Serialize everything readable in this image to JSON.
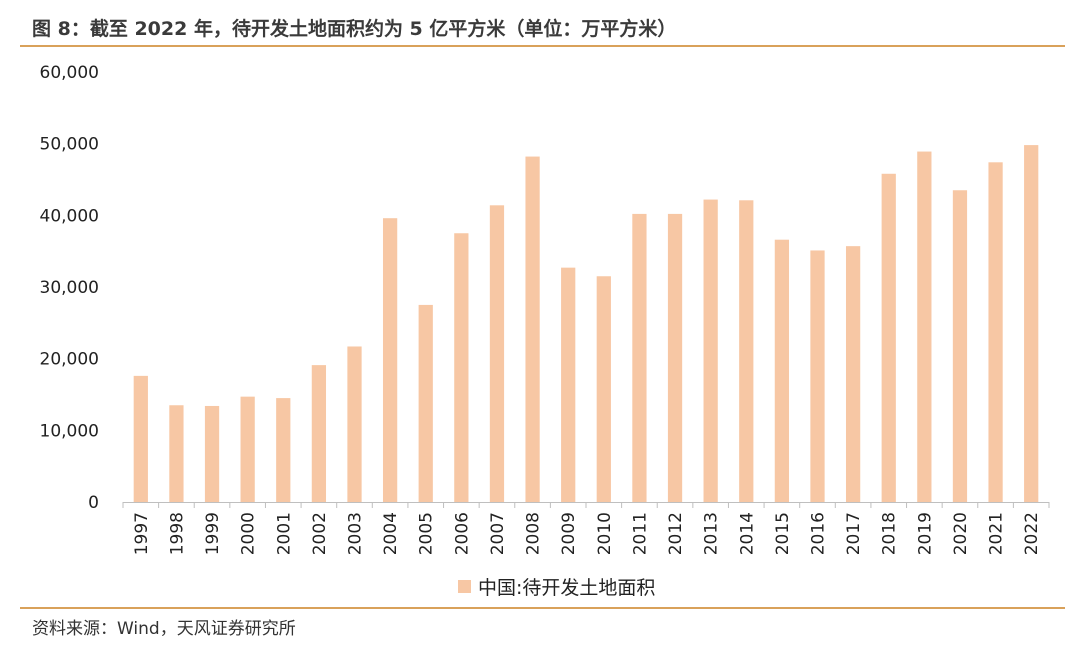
{
  "title": "图 8：截至 2022 年，待开发土地面积约为 5 亿平方米（单位：万平方米）",
  "source": "资料来源：Wind，天风证券研究所",
  "colors": {
    "bar": "#f7c7a4",
    "rule": "#d9a15a",
    "axis": "#bfbfbf"
  },
  "chart_data": {
    "type": "bar",
    "title": "图 8：截至 2022 年，待开发土地面积约为 5 亿平方米（单位：万平方米）",
    "xlabel": "",
    "ylabel": "",
    "ylim": [
      0,
      60000
    ],
    "yticks": [
      0,
      10000,
      20000,
      30000,
      40000,
      50000,
      60000
    ],
    "ytick_labels": [
      "0",
      "10,000",
      "20,000",
      "30,000",
      "40,000",
      "50,000",
      "60,000"
    ],
    "grid": false,
    "legend": "bottom-center",
    "categories": [
      "1997",
      "1998",
      "1999",
      "2000",
      "2001",
      "2002",
      "2003",
      "2004",
      "2005",
      "2006",
      "2007",
      "2008",
      "2009",
      "2010",
      "2011",
      "2012",
      "2013",
      "2014",
      "2015",
      "2016",
      "2017",
      "2018",
      "2019",
      "2020",
      "2021",
      "2022"
    ],
    "series": [
      {
        "name": "中国:待开发土地面积",
        "values": [
          17600,
          13500,
          13400,
          14700,
          14500,
          19100,
          21700,
          39600,
          27500,
          37500,
          41400,
          48200,
          32700,
          31500,
          40200,
          40200,
          42200,
          42100,
          36600,
          35100,
          35700,
          45800,
          48900,
          43500,
          47400,
          49800
        ]
      }
    ]
  }
}
